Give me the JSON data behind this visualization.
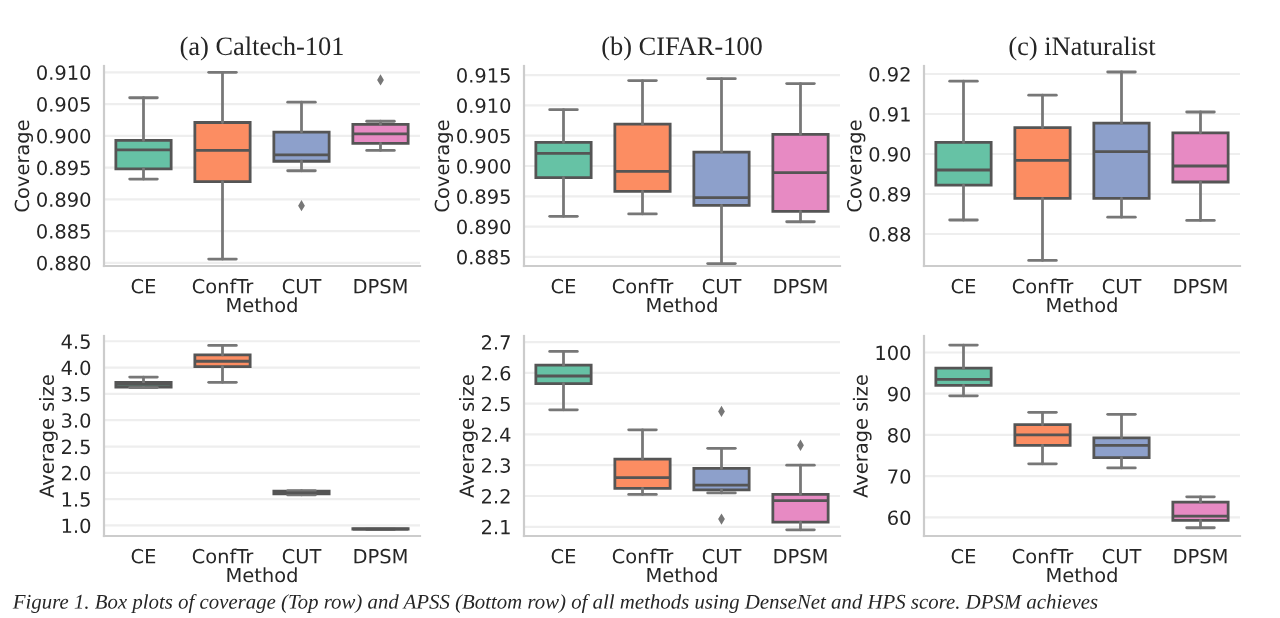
{
  "chart_data": [
    {
      "type": "box",
      "title": "(a) Caltech-101",
      "xlabel": "Method",
      "ylabel": "Coverage",
      "categories": [
        "CE",
        "ConfTr",
        "CUT",
        "DPSM"
      ],
      "colors": [
        "#66c2a5",
        "#fc8d62",
        "#8da0cb",
        "#e78ac3"
      ],
      "grid": "y",
      "ylim": [
        0.8795,
        0.911
      ],
      "yticks": [
        {
          "value": 0.88,
          "label": "0.880"
        },
        {
          "value": 0.885,
          "label": "0.885"
        },
        {
          "value": 0.89,
          "label": "0.890"
        },
        {
          "value": 0.895,
          "label": "0.895"
        },
        {
          "value": 0.9,
          "label": "0.900"
        },
        {
          "value": 0.905,
          "label": "0.905"
        },
        {
          "value": 0.91,
          "label": "0.910"
        }
      ],
      "boxes": [
        {
          "low": 0.8932,
          "q1": 0.8948,
          "median": 0.8978,
          "q3": 0.8993,
          "high": 0.906
        },
        {
          "low": 0.8806,
          "q1": 0.8928,
          "median": 0.8977,
          "q3": 0.9021,
          "high": 0.91
        },
        {
          "low": 0.8945,
          "q1": 0.896,
          "median": 0.897,
          "q3": 0.9006,
          "high": 0.9053,
          "outliers": [
            0.889
          ]
        },
        {
          "low": 0.8977,
          "q1": 0.8988,
          "median": 0.9003,
          "q3": 0.9018,
          "high": 0.9023,
          "outliers": [
            0.9088
          ]
        }
      ],
      "annotations": [
        "Figure 1. Box plots of coverage (Top row) and APSS (Bottom row) of all methods using DenseNet and HPS score. DPSM achieves"
      ]
    },
    {
      "type": "box",
      "title": "(b) CIFAR-100",
      "xlabel": "Method",
      "ylabel": "Coverage",
      "categories": [
        "CE",
        "ConfTr",
        "CUT",
        "DPSM"
      ],
      "colors": [
        "#66c2a5",
        "#fc8d62",
        "#8da0cb",
        "#e78ac3"
      ],
      "grid": "y",
      "ylim": [
        0.8835,
        0.9165
      ],
      "yticks": [
        {
          "value": 0.885,
          "label": "0.885"
        },
        {
          "value": 0.89,
          "label": "0.890"
        },
        {
          "value": 0.895,
          "label": "0.895"
        },
        {
          "value": 0.9,
          "label": "0.900"
        },
        {
          "value": 0.905,
          "label": "0.905"
        },
        {
          "value": 0.91,
          "label": "0.910"
        },
        {
          "value": 0.915,
          "label": "0.915"
        }
      ],
      "boxes": [
        {
          "low": 0.8917,
          "q1": 0.8981,
          "median": 0.9021,
          "q3": 0.9039,
          "high": 0.9093
        },
        {
          "low": 0.8921,
          "q1": 0.8958,
          "median": 0.8991,
          "q3": 0.9069,
          "high": 0.9141
        },
        {
          "low": 0.8839,
          "q1": 0.8935,
          "median": 0.8948,
          "q3": 0.9023,
          "high": 0.9144
        },
        {
          "low": 0.8908,
          "q1": 0.8925,
          "median": 0.8989,
          "q3": 0.9052,
          "high": 0.9136
        }
      ]
    },
    {
      "type": "box",
      "title": "(c) iNaturalist",
      "xlabel": "Method",
      "ylabel": "Coverage",
      "categories": [
        "CE",
        "ConfTr",
        "CUT",
        "DPSM"
      ],
      "colors": [
        "#66c2a5",
        "#fc8d62",
        "#8da0cb",
        "#e78ac3"
      ],
      "grid": "y",
      "ylim": [
        0.872,
        0.922
      ],
      "yticks": [
        {
          "value": 0.88,
          "label": "0.88"
        },
        {
          "value": 0.89,
          "label": "0.89"
        },
        {
          "value": 0.9,
          "label": "0.90"
        },
        {
          "value": 0.91,
          "label": "0.91"
        },
        {
          "value": 0.92,
          "label": "0.92"
        }
      ],
      "boxes": [
        {
          "low": 0.8835,
          "q1": 0.8922,
          "median": 0.896,
          "q3": 0.9029,
          "high": 0.9182
        },
        {
          "low": 0.8734,
          "q1": 0.8889,
          "median": 0.8984,
          "q3": 0.9066,
          "high": 0.9147
        },
        {
          "low": 0.8842,
          "q1": 0.8889,
          "median": 0.9006,
          "q3": 0.9077,
          "high": 0.9205
        },
        {
          "low": 0.8834,
          "q1": 0.893,
          "median": 0.897,
          "q3": 0.9053,
          "high": 0.9105
        }
      ]
    },
    {
      "type": "box",
      "xlabel": "Method",
      "ylabel": "Average size",
      "categories": [
        "CE",
        "ConfTr",
        "CUT",
        "DPSM"
      ],
      "colors": [
        "#66c2a5",
        "#fc8d62",
        "#8da0cb",
        "#e78ac3"
      ],
      "grid": "y",
      "ylim": [
        0.8,
        4.6
      ],
      "yticks": [
        {
          "value": 1,
          "label": "1.0"
        },
        1.5,
        {
          "value": 2,
          "label": "2.0"
        },
        2.5,
        {
          "value": 3,
          "label": "3.0"
        },
        3.5,
        {
          "value": 4,
          "label": "4.0"
        },
        4.5
      ],
      "boxes": [
        {
          "low": 3.62,
          "q1": 3.63,
          "median": 3.68,
          "q3": 3.72,
          "high": 3.82
        },
        {
          "low": 3.72,
          "q1": 4.02,
          "median": 4.12,
          "q3": 4.24,
          "high": 4.42
        },
        {
          "low": 1.58,
          "q1": 1.6,
          "median": 1.62,
          "q3": 1.65,
          "high": 1.66
        },
        {
          "low": 0.92,
          "q1": 0.93,
          "median": 0.93,
          "q3": 0.94,
          "high": 0.94
        }
      ]
    },
    {
      "type": "box",
      "xlabel": "Method",
      "ylabel": "Average size",
      "categories": [
        "CE",
        "ConfTr",
        "CUT",
        "DPSM"
      ],
      "colors": [
        "#66c2a5",
        "#fc8d62",
        "#8da0cb",
        "#e78ac3"
      ],
      "grid": "y",
      "ylim": [
        2.07,
        2.72
      ],
      "yticks": [
        2.1,
        2.2,
        2.3,
        2.4,
        2.5,
        2.6,
        2.7
      ],
      "boxes": [
        {
          "low": 2.48,
          "q1": 2.565,
          "median": 2.59,
          "q3": 2.625,
          "high": 2.67
        },
        {
          "low": 2.205,
          "q1": 2.225,
          "median": 2.26,
          "q3": 2.32,
          "high": 2.415
        },
        {
          "low": 2.21,
          "q1": 2.22,
          "median": 2.235,
          "q3": 2.29,
          "high": 2.355,
          "outliers": [
            2.475,
            2.125
          ]
        },
        {
          "low": 2.09,
          "q1": 2.115,
          "median": 2.185,
          "q3": 2.205,
          "high": 2.3,
          "outliers": [
            2.365
          ]
        }
      ]
    },
    {
      "type": "box",
      "xlabel": "Method",
      "ylabel": "Average size",
      "categories": [
        "CE",
        "ConfTr",
        "CUT",
        "DPSM"
      ],
      "colors": [
        "#66c2a5",
        "#fc8d62",
        "#8da0cb",
        "#e78ac3"
      ],
      "grid": "y",
      "ylim": [
        55.5,
        104
      ],
      "yticks": [
        60,
        70,
        80,
        90,
        100
      ],
      "boxes": [
        {
          "low": 89.5,
          "q1": 92,
          "median": 93.5,
          "q3": 96.2,
          "high": 101.8
        },
        {
          "low": 73,
          "q1": 77.5,
          "median": 80,
          "q3": 82.5,
          "high": 85.5
        },
        {
          "low": 72,
          "q1": 74.5,
          "median": 77.5,
          "q3": 79.3,
          "high": 85
        },
        {
          "low": 57.5,
          "q1": 59.3,
          "median": 60.3,
          "q3": 63.7,
          "high": 65
        }
      ]
    }
  ]
}
